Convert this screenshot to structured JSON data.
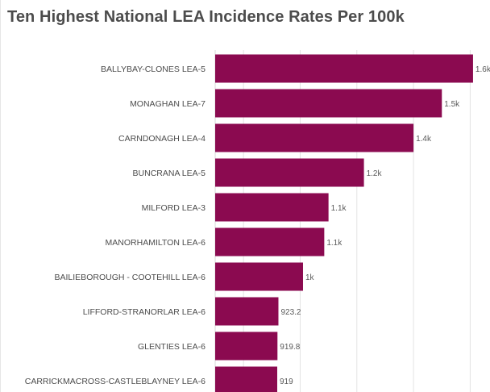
{
  "header": {
    "title": "Ten Highest National LEA Incidence Rates Per 100k"
  },
  "colors": {
    "bar": "#8b0a50",
    "grid": "#e3e3e3",
    "axis": "#d9d9d9",
    "title": "#4c4c4c"
  },
  "chart_data": {
    "type": "bar",
    "orientation": "horizontal",
    "title": "Ten Highest National LEA Incidence Rates Per 100k",
    "categories": [
      "BALLYBAY-CLONES LEA-5",
      "MONAGHAN LEA-7",
      "CARNDONAGH LEA-4",
      "BUNCRANA LEA-5",
      "MILFORD LEA-3",
      "MANORHAMILTON LEA-6",
      "BAILIEBOROUGH - COOTEHILL LEA-6",
      "LIFFORD-STRANORLAR LEA-6",
      "GLENTIES LEA-6",
      "CARRICKMACROSS-CASTLEBLAYNEY LEA-6"
    ],
    "values": [
      1610,
      1500,
      1400,
      1225,
      1100,
      1085,
      1010,
      923.2,
      919.8,
      919
    ],
    "value_labels": [
      "1.6k",
      "1.5k",
      "1.4k",
      "1.2k",
      "1.1k",
      "1.1k",
      "1k",
      "923.2",
      "919.8",
      "919"
    ],
    "xlim": [
      700,
      1650
    ],
    "grid_values": [
      800,
      1000,
      1200,
      1400,
      1600
    ],
    "grid": true,
    "legend": "none"
  }
}
